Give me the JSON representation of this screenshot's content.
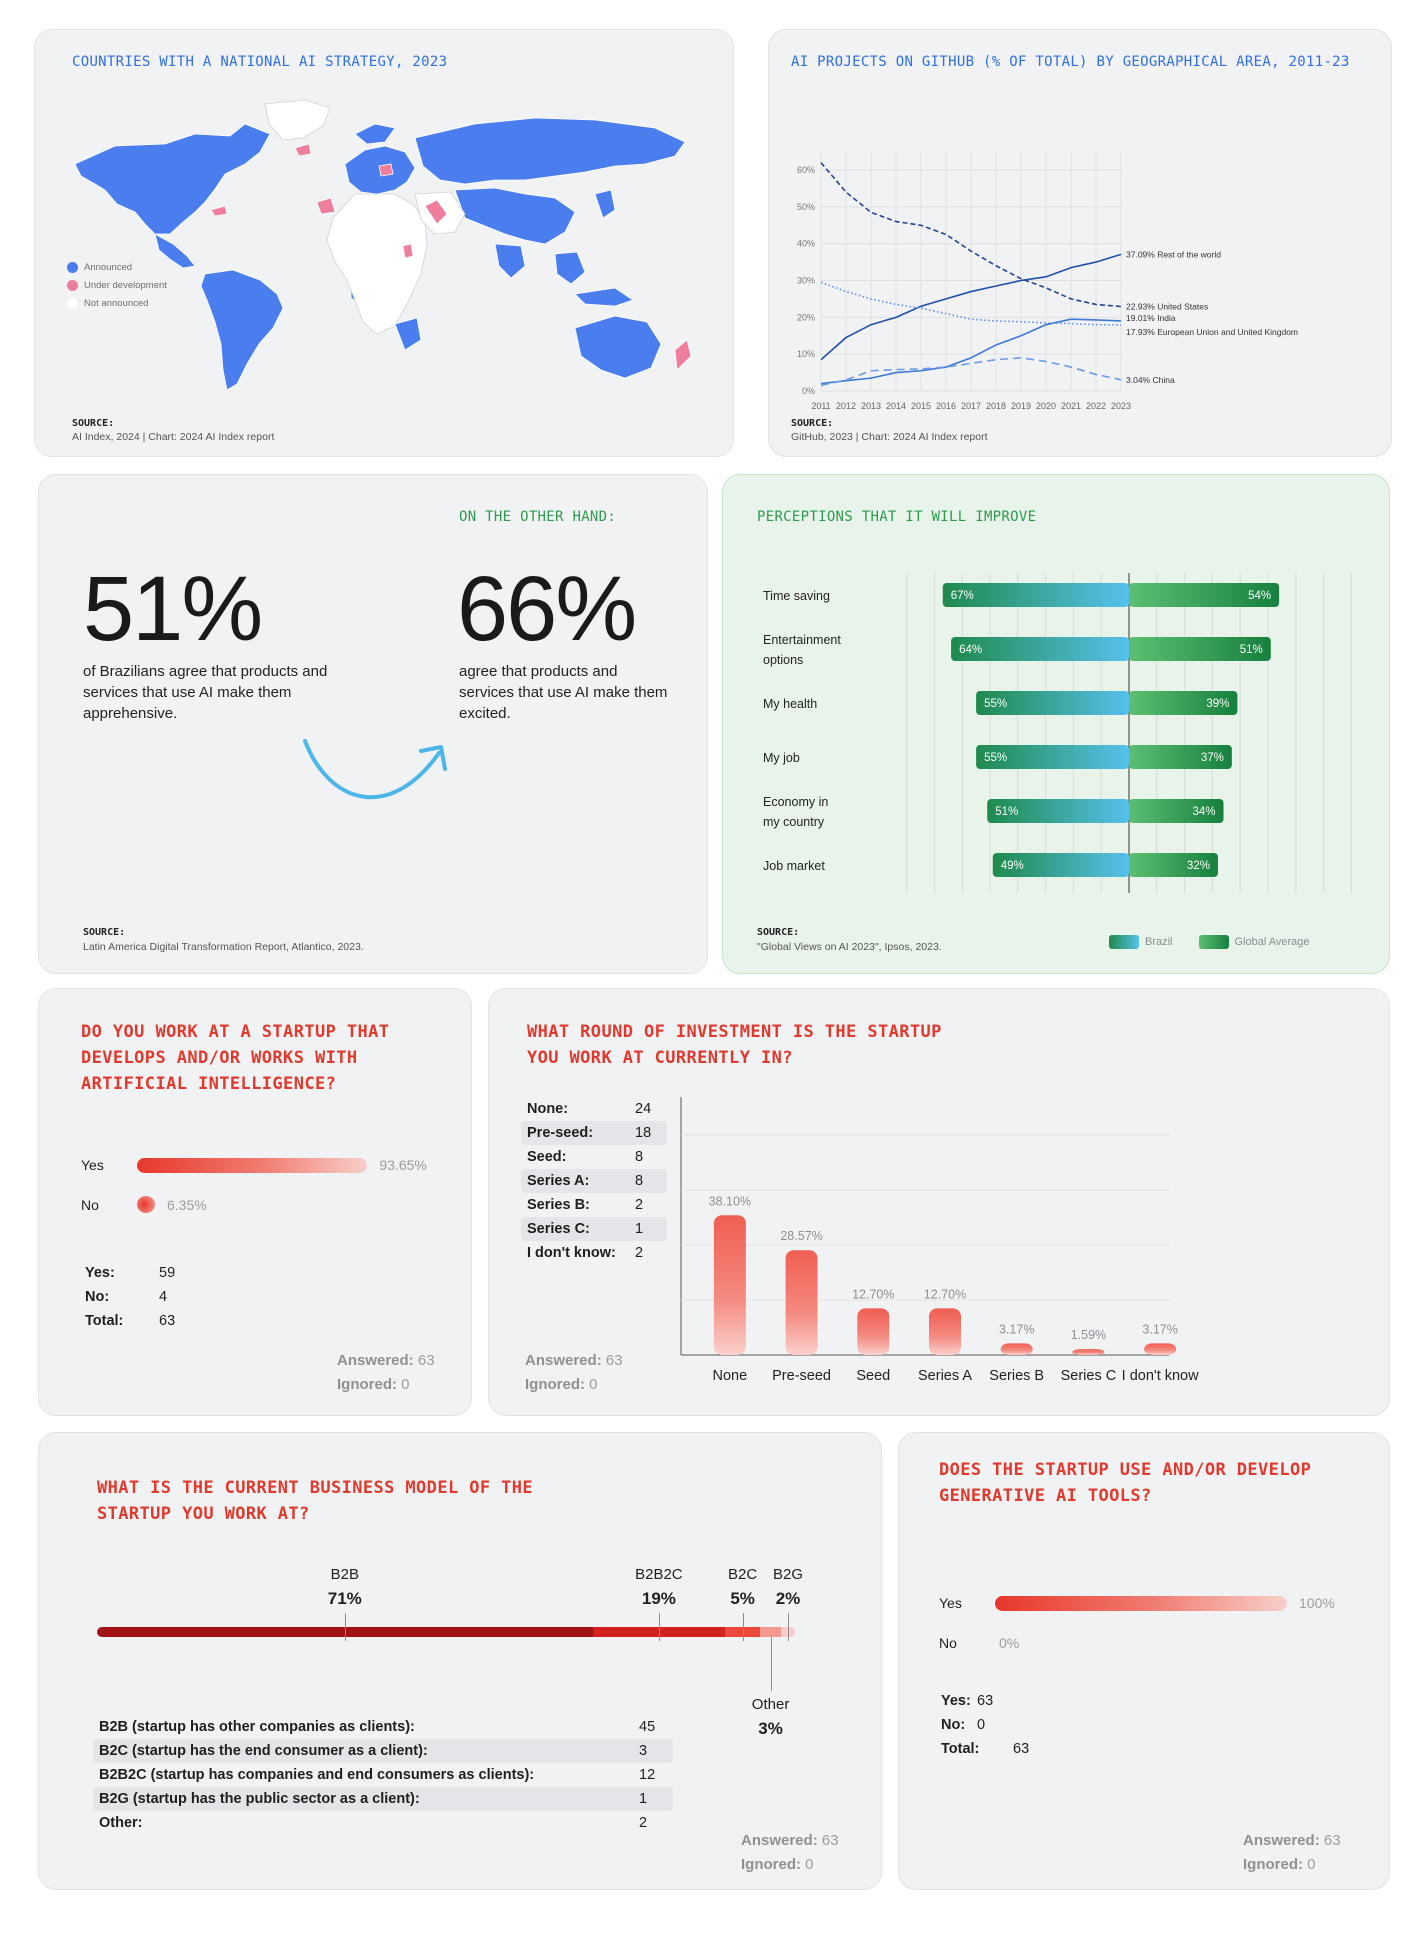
{
  "card_map": {
    "title": "COUNTRIES WITH A NATIONAL AI STRATEGY, 2023",
    "legend": [
      {
        "label": "Announced",
        "color": "#4a7dee"
      },
      {
        "label": "Under development",
        "color": "#ee7e9c"
      },
      {
        "label": "Not announced",
        "color": "#ffffff"
      }
    ],
    "source_label": "SOURCE:",
    "source_text": "AI Index, 2024 | Chart: 2024 AI Index report"
  },
  "card_github": {
    "title": "AI PROJECTS ON GITHUB (% OF TOTAL) BY GEOGRAPHICAL AREA, 2011-23",
    "source_label": "SOURCE:",
    "source_text": "GitHub, 2023 | Chart: 2024 AI Index report",
    "end_labels": {
      "row": "37.09% Rest of the world",
      "us": "22.93% United States",
      "india": "19.01% India",
      "eu": "17.93% European Union and United Kingdom",
      "china": "3.04% China"
    }
  },
  "card_apprehension": {
    "left_value": "51%",
    "left_text": "of Brazilians agree that products and services that use AI make them apprehensive.",
    "right_heading": "ON THE OTHER HAND:",
    "right_value": "66%",
    "right_text": "agree that products and services that use AI make them excited.",
    "source_label": "SOURCE:",
    "source_text": "Latin America Digital Transformation Report, Atlantico, 2023."
  },
  "card_perceptions": {
    "title": "PERCEPTIONS THAT IT WILL IMPROVE",
    "axis_ticks": [
      "80%",
      "70%",
      "60%",
      "50%",
      "40%",
      "30%",
      "20%",
      "10%",
      "0%",
      "0%",
      "10%",
      "20%",
      "30%",
      "40%",
      "50%",
      "60%",
      "70%",
      "80%"
    ],
    "legend": [
      {
        "label": "Brazil"
      },
      {
        "label": "Global Average"
      }
    ],
    "source_label": "SOURCE:",
    "source_text": "\"Global Views on AI 2023\", Ipsos, 2023.",
    "colors": {
      "brazil_from": "#1f8a4c",
      "brazil_to": "#56c1ec",
      "global_from": "#5cbf72",
      "global_to": "#17803f"
    }
  },
  "card_startup": {
    "title": "DO YOU WORK AT A STARTUP THAT DEVELOPS AND/OR WORKS WITH ARTIFICIAL INTELLIGENCE?",
    "bars": [
      {
        "label": "Yes",
        "pct": 93.65,
        "text": "93.65%"
      },
      {
        "label": "No",
        "pct": 6.35,
        "text": "6.35%"
      }
    ],
    "counts": [
      {
        "k": "Yes:",
        "v": "59"
      },
      {
        "k": "No:",
        "v": "4"
      },
      {
        "k": "Total:",
        "v": "63"
      }
    ],
    "answered": "Answered:",
    "answered_n": "63",
    "ignored": "Ignored:",
    "ignored_n": "0"
  },
  "card_round": {
    "title": "WHAT ROUND OF INVESTMENT IS THE STARTUP YOU WORK AT CURRENTLY IN?",
    "counts": [
      {
        "k": "None:",
        "v": "24"
      },
      {
        "k": "Pre-seed:",
        "v": "18"
      },
      {
        "k": "Seed:",
        "v": "8"
      },
      {
        "k": "Series A:",
        "v": "8"
      },
      {
        "k": "Series B:",
        "v": "2"
      },
      {
        "k": "Series C:",
        "v": "1"
      },
      {
        "k": "I don't know:",
        "v": "2"
      }
    ],
    "answered": "Answered:",
    "answered_n": "63",
    "ignored": "Ignored:",
    "ignored_n": "0"
  },
  "card_model": {
    "title": "WHAT IS THE CURRENT BUSINESS MODEL OF THE STARTUP YOU WORK AT?",
    "segments": [
      {
        "name": "B2B",
        "pct": 71,
        "text": "71%",
        "color": "#a11214"
      },
      {
        "name": "B2B2C",
        "pct": 19,
        "text": "19%",
        "color": "#d4231f"
      },
      {
        "name": "B2C",
        "pct": 5,
        "text": "5%",
        "color": "#ea4a3c"
      },
      {
        "name": "Other",
        "pct": 3,
        "text": "3%",
        "color": "#f29a90"
      },
      {
        "name": "B2G",
        "pct": 2,
        "text": "2%",
        "color": "#f8cdc8"
      }
    ],
    "counts": [
      {
        "k": "B2B (startup has other companies as clients):",
        "v": "45"
      },
      {
        "k": "B2C (startup has the end consumer as a client):",
        "v": "3"
      },
      {
        "k": "B2B2C (startup has companies and end consumers as clients):",
        "v": "12"
      },
      {
        "k": "B2G (startup has the public sector as a client):",
        "v": "1"
      },
      {
        "k": "Other:",
        "v": "2"
      }
    ],
    "answered": "Answered:",
    "answered_n": "63",
    "ignored": "Ignored:",
    "ignored_n": "0"
  },
  "card_genai": {
    "title": "DOES THE STARTUP USE AND/OR DEVELOP GENERATIVE AI TOOLS?",
    "bars": [
      {
        "label": "Yes",
        "pct": 100,
        "text": "100%"
      },
      {
        "label": "No",
        "pct": 0,
        "text": "0%"
      }
    ],
    "counts": [
      {
        "k": "Yes:",
        "v": "63"
      },
      {
        "k": "No:",
        "v": "0"
      },
      {
        "k": "Total:",
        "v": "63"
      }
    ],
    "answered": "Answered:",
    "answered_n": "63",
    "ignored": "Ignored:",
    "ignored_n": "0"
  },
  "chart_data": [
    {
      "type": "line",
      "x": [
        2011,
        2012,
        2013,
        2014,
        2015,
        2016,
        2017,
        2018,
        2019,
        2020,
        2021,
        2022,
        2023
      ],
      "y_ticks": [
        "0%",
        "10%",
        "20%",
        "30%",
        "40%",
        "50%",
        "60%"
      ],
      "ylim": [
        0,
        60
      ],
      "series": [
        {
          "name": "Rest of the world",
          "style": "solid",
          "color": "#1f4fa8",
          "values": [
            8.5,
            14.5,
            18,
            20,
            23,
            25,
            27,
            28.5,
            30,
            31,
            33.5,
            35,
            37.09
          ]
        },
        {
          "name": "United States",
          "style": "dashed",
          "color": "#24458f",
          "values": [
            62,
            54,
            48.5,
            46,
            45,
            42.5,
            38,
            34,
            30.5,
            28,
            25,
            23.5,
            22.93
          ]
        },
        {
          "name": "India",
          "style": "solid",
          "color": "#3f78d6",
          "values": [
            2,
            2.8,
            3.5,
            5,
            5.5,
            6.5,
            9,
            12.5,
            15,
            18,
            19.5,
            19.3,
            19.01
          ]
        },
        {
          "name": "European Union and United Kingdom",
          "style": "dotted",
          "color": "#5a8be0",
          "values": [
            29.5,
            27,
            25,
            23.5,
            22.5,
            21,
            19.5,
            19,
            18.8,
            18.5,
            18.3,
            18,
            17.93
          ]
        },
        {
          "name": "China",
          "style": "longdash",
          "color": "#6c9be6",
          "values": [
            1.5,
            3,
            5.5,
            5.8,
            6,
            6.5,
            7.5,
            8.5,
            9,
            8,
            6.5,
            4.5,
            3.04
          ]
        }
      ]
    },
    {
      "type": "bar",
      "orientation": "horizontal-diverging",
      "categories": [
        "Time saving",
        "Entertainment options",
        "My health",
        "My job",
        "Economy in my country",
        "Job market"
      ],
      "series": [
        {
          "name": "Brazil",
          "values": [
            67,
            64,
            55,
            55,
            51,
            49
          ]
        },
        {
          "name": "Global Average",
          "values": [
            54,
            51,
            39,
            37,
            34,
            32
          ]
        }
      ],
      "xlim": [
        0,
        80
      ]
    },
    {
      "type": "bar",
      "categories": [
        "None",
        "Pre-seed",
        "Seed",
        "Series A",
        "Series B",
        "Series C",
        "I don't know"
      ],
      "values": [
        38.1,
        28.57,
        12.7,
        12.7,
        3.17,
        1.59,
        3.17
      ],
      "labels": [
        "38.10%",
        "28.57%",
        "12.70%",
        "12.70%",
        "3.17%",
        "1.59%",
        "3.17%"
      ],
      "ylim": [
        0,
        60
      ]
    }
  ]
}
